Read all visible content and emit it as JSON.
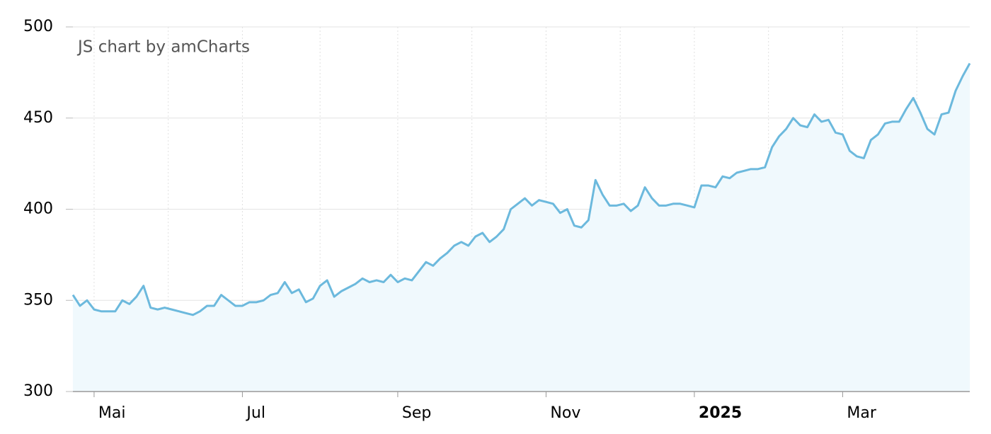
{
  "chart_data": {
    "type": "area",
    "credit": "JS chart by amCharts",
    "categories": [
      null,
      null,
      null,
      "Mai",
      null,
      null,
      null,
      null,
      null,
      null,
      null,
      null,
      null,
      null,
      null,
      null,
      null,
      null,
      null,
      null,
      null,
      null,
      null,
      null,
      "Jul",
      null,
      null,
      null,
      null,
      null,
      null,
      null,
      null,
      null,
      null,
      null,
      null,
      null,
      null,
      null,
      null,
      null,
      null,
      null,
      null,
      null,
      "Sep",
      null,
      null,
      null,
      null,
      null,
      null,
      null,
      null,
      null,
      null,
      null,
      null,
      null,
      null,
      null,
      null,
      null,
      null,
      null,
      null,
      "Nov",
      null,
      null,
      null,
      null,
      null,
      null,
      null,
      null,
      null,
      null,
      null,
      null,
      null,
      null,
      null,
      null,
      null,
      null,
      null,
      null,
      "2025",
      null,
      null,
      null,
      null,
      null,
      null,
      null,
      null,
      null,
      null,
      null,
      null,
      null,
      null,
      null,
      null,
      null,
      null,
      null,
      null,
      "Mar",
      null,
      null,
      null,
      null,
      null,
      null,
      null,
      null,
      null,
      null,
      null,
      null,
      null,
      null,
      null,
      null,
      null,
      null
    ],
    "values": [
      353,
      347,
      350,
      345,
      344,
      344,
      344,
      350,
      348,
      352,
      358,
      346,
      345,
      346,
      345,
      344,
      343,
      342,
      344,
      347,
      347,
      353,
      350,
      347,
      347,
      349,
      349,
      350,
      353,
      354,
      360,
      354,
      356,
      349,
      351,
      358,
      361,
      352,
      355,
      357,
      359,
      362,
      360,
      361,
      360,
      364,
      360,
      362,
      361,
      366,
      371,
      369,
      373,
      376,
      380,
      382,
      380,
      385,
      387,
      382,
      385,
      389,
      400,
      403,
      406,
      402,
      405,
      404,
      403,
      398,
      400,
      391,
      390,
      394,
      416,
      408,
      402,
      402,
      403,
      399,
      402,
      412,
      406,
      402,
      402,
      403,
      403,
      402,
      401,
      413,
      413,
      412,
      418,
      417,
      420,
      421,
      422,
      422,
      423,
      434,
      440,
      444,
      450,
      446,
      445,
      452,
      448,
      449,
      442,
      441,
      432,
      429,
      428,
      438,
      441,
      447,
      448,
      448,
      455,
      461,
      453,
      444,
      441,
      452,
      453,
      465,
      473,
      480
    ],
    "color": "#6cb9dd",
    "fill": "#f0f9fd",
    "ylim": [
      300,
      500
    ],
    "yticks": [
      300,
      350,
      400,
      450,
      500
    ],
    "grid": true
  }
}
